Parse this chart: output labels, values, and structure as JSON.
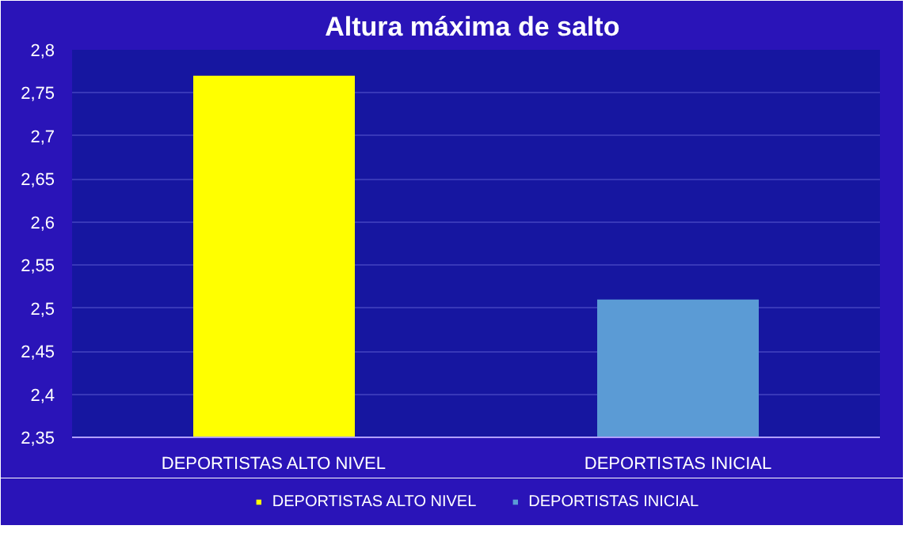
{
  "chart_data": {
    "type": "bar",
    "title": "Altura máxima  de salto",
    "categories": [
      "DEPORTISTAS ALTO NIVEL",
      "DEPORTISTAS INICIAL"
    ],
    "series": [
      {
        "name": "DEPORTISTAS ALTO NIVEL",
        "color": "#ffff00",
        "values": [
          2.77,
          null
        ]
      },
      {
        "name": "DEPORTISTAS INICIAL",
        "color": "#5b9bd5",
        "values": [
          null,
          2.51
        ]
      }
    ],
    "ylim": [
      2.35,
      2.8
    ],
    "yticks": [
      {
        "value": 2.35,
        "label": "2,35"
      },
      {
        "value": 2.4,
        "label": "2,4"
      },
      {
        "value": 2.45,
        "label": "2,45"
      },
      {
        "value": 2.5,
        "label": "2,5"
      },
      {
        "value": 2.55,
        "label": "2,55"
      },
      {
        "value": 2.6,
        "label": "2,6"
      },
      {
        "value": 2.65,
        "label": "2,65"
      },
      {
        "value": 2.7,
        "label": "2,7"
      },
      {
        "value": 2.75,
        "label": "2,75"
      },
      {
        "value": 2.8,
        "label": "2,8"
      }
    ],
    "grid": "y",
    "legend": "bottom"
  }
}
